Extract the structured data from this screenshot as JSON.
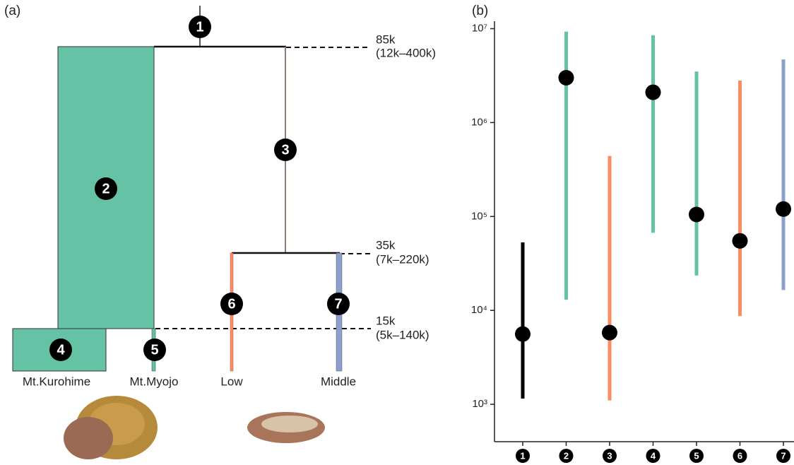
{
  "diagram": {
    "label": "(a)",
    "nodes": [
      "1",
      "2",
      "3",
      "4",
      "5",
      "6",
      "7"
    ],
    "splits": [
      {
        "time": "85k",
        "range": "(12k–400k)"
      },
      {
        "time": "35k",
        "range": "(7k–220k)"
      },
      {
        "time": "15k",
        "range": "(5k–140k)"
      }
    ],
    "populations": [
      "Mt.Kurohime",
      "Mt.Myojo",
      "Low",
      "Middle"
    ]
  },
  "chart_data": {
    "type": "errorbar",
    "label": "(b)",
    "categories": [
      "1",
      "2",
      "3",
      "4",
      "5",
      "6",
      "7"
    ],
    "values": [
      5600,
      3000000,
      5800,
      2100000,
      105000,
      55000,
      120000
    ],
    "lower": [
      1150,
      13000,
      1100,
      67000,
      23500,
      8700,
      16500
    ],
    "upper": [
      53000,
      9300000,
      440000,
      8500000,
      3500000,
      2800000,
      4700000
    ],
    "colors": [
      "#000000",
      "#66c2a5",
      "#fc8d62",
      "#66c2a5",
      "#66c2a5",
      "#fc8d62",
      "#8da0cb"
    ],
    "log_scale": true,
    "ylim": [
      400,
      12000000
    ],
    "yticks": [
      {
        "value": 1000,
        "label": "10³"
      },
      {
        "value": 10000,
        "label": "10⁴"
      },
      {
        "value": 100000,
        "label": "10⁵"
      },
      {
        "value": 1000000,
        "label": "10⁶"
      },
      {
        "value": 10000000,
        "label": "10⁷"
      }
    ]
  }
}
